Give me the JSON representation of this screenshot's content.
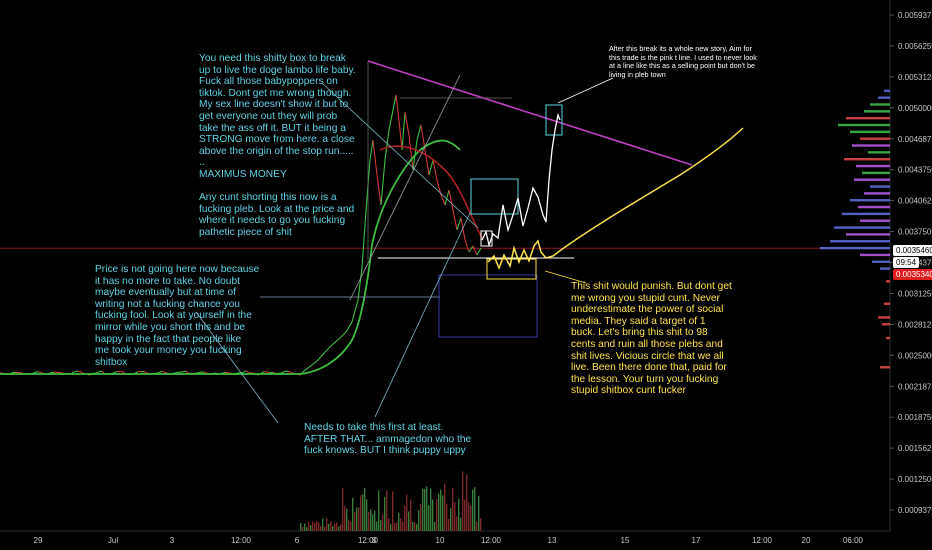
{
  "chart_data": {
    "type": "candlestick",
    "y_ticks": [
      "0.0059375",
      "0.0056250",
      "0.0053125",
      "0.0050000",
      "0.0046875",
      "0.0043750",
      "0.0040625",
      "0.0037500",
      "0.0034375",
      "0.0031250",
      "0.0028125",
      "0.0025000",
      "0.0021875",
      "0.0018750",
      "0.0015625",
      "0.0012500",
      "0.0009375"
    ],
    "ylim": [
      0.00083,
      0.006
    ],
    "x_ticks": [
      "29",
      "Jul",
      "3",
      "12:00",
      "6",
      "12:00",
      "8",
      "10",
      "12:00",
      "13",
      "15",
      "17",
      "12:00",
      "20",
      "06:00"
    ],
    "price_labels": {
      "upper": {
        "text": "0.0035460",
        "value": 0.003546,
        "color": "#ffffff",
        "text_color": "#000000"
      },
      "countdown": {
        "text": "09:54",
        "value": 0.003485,
        "color": "#ffffff",
        "text_color": "#000000"
      },
      "current": {
        "text": "0.0035340",
        "value": 0.003534,
        "color": "#e11d1d",
        "text_color": "#ffffff"
      }
    },
    "lines": {
      "current_price": {
        "value": 0.00354,
        "color": "#8b1a1a"
      },
      "ma_green": {
        "color": "#3fbf3f"
      },
      "ma_red": {
        "color": "#b02020"
      },
      "pink_trendline": {
        "color": "#c040c0"
      },
      "yellow_projection": {
        "color": "#ffe24d"
      },
      "white_projection": {
        "color": "#ffffff"
      }
    },
    "volume_profile": [
      {
        "price": 0.00515,
        "len": 6,
        "c": "#5b6bd8"
      },
      {
        "price": 0.00508,
        "len": 12,
        "c": "#5b6bd8"
      },
      {
        "price": 0.00501,
        "len": 20,
        "c": "#3cb84a"
      },
      {
        "price": 0.00494,
        "len": 26,
        "c": "#3cb84a"
      },
      {
        "price": 0.00487,
        "len": 44,
        "c": "#e04848"
      },
      {
        "price": 0.0048,
        "len": 52,
        "c": "#3cb84a"
      },
      {
        "price": 0.00473,
        "len": 40,
        "c": "#3cb84a"
      },
      {
        "price": 0.00466,
        "len": 30,
        "c": "#e04848"
      },
      {
        "price": 0.00459,
        "len": 38,
        "c": "#b55ae0"
      },
      {
        "price": 0.00452,
        "len": 22,
        "c": "#3cb84a"
      },
      {
        "price": 0.00445,
        "len": 46,
        "c": "#e04848"
      },
      {
        "price": 0.00438,
        "len": 34,
        "c": "#b55ae0"
      },
      {
        "price": 0.00431,
        "len": 28,
        "c": "#3cb84a"
      },
      {
        "price": 0.00424,
        "len": 36,
        "c": "#b55ae0"
      },
      {
        "price": 0.00417,
        "len": 20,
        "c": "#5b6bd8"
      },
      {
        "price": 0.0041,
        "len": 26,
        "c": "#b55ae0"
      },
      {
        "price": 0.00403,
        "len": 40,
        "c": "#5b6bd8"
      },
      {
        "price": 0.00396,
        "len": 32,
        "c": "#b55ae0"
      },
      {
        "price": 0.00389,
        "len": 48,
        "c": "#5b6bd8"
      },
      {
        "price": 0.00382,
        "len": 30,
        "c": "#b55ae0"
      },
      {
        "price": 0.00375,
        "len": 56,
        "c": "#5b6bd8"
      },
      {
        "price": 0.00368,
        "len": 44,
        "c": "#b55ae0"
      },
      {
        "price": 0.00361,
        "len": 60,
        "c": "#5b6bd8"
      },
      {
        "price": 0.00354,
        "len": 70,
        "c": "#5b6bd8"
      },
      {
        "price": 0.00347,
        "len": 30,
        "c": "#b55ae0"
      },
      {
        "price": 0.0034,
        "len": 18,
        "c": "#5b6bd8"
      },
      {
        "price": 0.00333,
        "len": 10,
        "c": "#5b6bd8"
      },
      {
        "price": 0.0032,
        "len": 4,
        "c": "#e04848"
      },
      {
        "price": 0.00297,
        "len": 6,
        "c": "#e04848"
      },
      {
        "price": 0.00283,
        "len": 12,
        "c": "#e04848"
      },
      {
        "price": 0.00276,
        "len": 8,
        "c": "#e04848"
      },
      {
        "price": 0.00262,
        "len": 4,
        "c": "#e04848"
      },
      {
        "price": 0.00232,
        "len": 10,
        "c": "#e04848"
      }
    ]
  },
  "annotations": {
    "top_center": "You need this shitty box to break\nup to live the doge lambo life baby.\nFuck all those babypoppers on\ntiktok. Dont get me wrong though.\nMy sex line doesn't show it but to\nget everyone out they will prob\ntake the ass off it. BUT it being a\nSTRONG move from here. a close\nabove the origin of the stop run.....\n..\nMAXIMUS MONEY\n\nAny cunt shorting this now is a\nfucking pleb. Look at the price and\nwhere it needs to go you fucking\npathetic piece of shit",
    "top_right": "After this break its a whole new story, Aim for\nthis trade is the pink t line. I used to never look\nat a line like this as a selling point but don't be\nliving in pleb town",
    "left_middle": "Price is not going here now because\nit has no more to take. No doubt\nmaybe eventually but at time of\nwriting not a fucking chance you\nfucking fool. Look at yourself in the\nmirror while you short this and be\nhappy in the fact that people like\nme took your money you fucking\nshitbox",
    "bottom_center": "Needs to take this first at least.\nAFTER THAT... ammagedon who the\nfuck knows. BUT I think puppy uppy",
    "bottom_right": "This shit would punish. But dont get\nme wrong you stupid cunt. Never\nunderestimate the power of social\nmedia. They said  a target of 1\nbuck. Let's bring this shit to 98\ncents and ruin all those plebs and\nshit lives. Vicious circle that we all\nlive. Been there done that, paid for\nthe lesson. Your turn you fucking\nstupid shitbox cunt fucker"
  }
}
